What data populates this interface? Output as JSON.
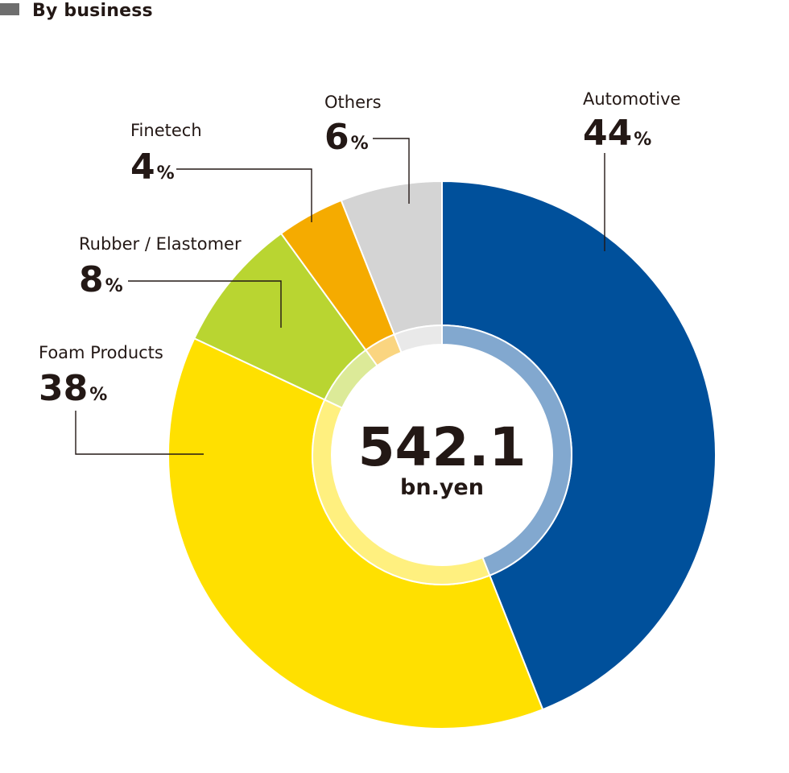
{
  "header": {
    "title": "By business",
    "marker_color": "#6e6e6e"
  },
  "chart_data": {
    "type": "pie",
    "subtype": "donut",
    "title": "By business",
    "total_label": "542.1",
    "total_unit": "bn.yen",
    "unit_suffix": "%",
    "slices": [
      {
        "name": "Automotive",
        "value": 44,
        "color": "#00509b",
        "inner_color": "#82a8cf"
      },
      {
        "name": "Foam Products",
        "value": 38,
        "color": "#ffe000",
        "inner_color": "#fff07f"
      },
      {
        "name": "Rubber / Elastomer",
        "value": 8,
        "color": "#b9d531",
        "inner_color": "#dcea98"
      },
      {
        "name": "Finetech",
        "value": 4,
        "color": "#f5ab00",
        "inner_color": "#fad580"
      },
      {
        "name": "Others",
        "value": 6,
        "color": "#d4d4d4",
        "inner_color": "#e9e9e9"
      }
    ]
  }
}
